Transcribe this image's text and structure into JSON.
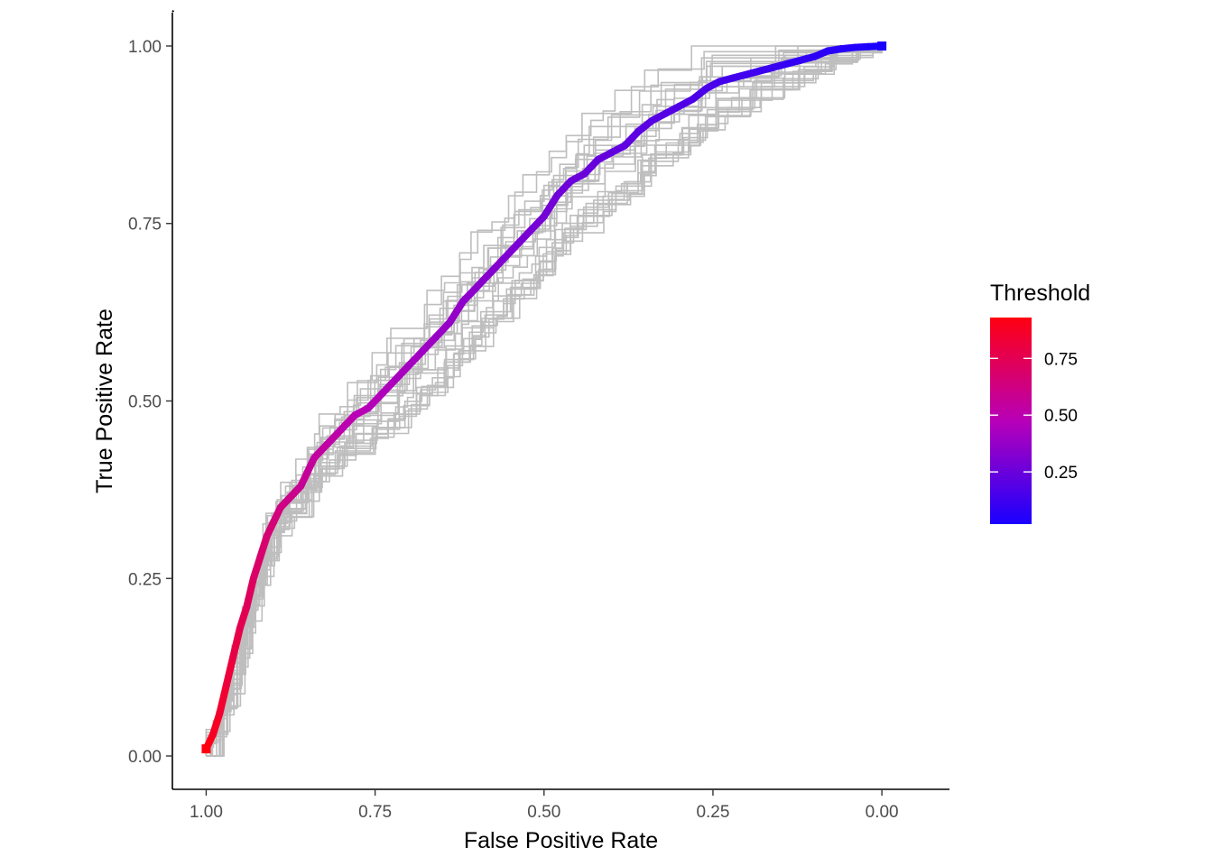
{
  "chart_data": {
    "type": "line",
    "title": "",
    "xlabel": "False Positive Rate",
    "ylabel": "True Positive Rate",
    "x_reversed": true,
    "xlim": [
      1.05,
      -0.1
    ],
    "ylim": [
      -0.047,
      1.047
    ],
    "x_ticks": [
      1.0,
      0.75,
      0.5,
      0.25,
      0.0
    ],
    "x_tick_labels": [
      "1.00",
      "0.75",
      "0.50",
      "0.25",
      "0.00"
    ],
    "y_ticks": [
      0.0,
      0.25,
      0.5,
      0.75,
      1.0
    ],
    "y_tick_labels": [
      "0.00",
      "0.25",
      "0.50",
      "0.75",
      "1.00"
    ],
    "grid": false,
    "diagonal_reference": true,
    "legend": {
      "title": "Threshold",
      "position": "right",
      "ticks": [
        0.75,
        0.5,
        0.25
      ],
      "tick_labels": [
        "0.75",
        "0.50",
        "0.25"
      ],
      "range": [
        0.02,
        0.93
      ],
      "colors": {
        "low": "#1a00ff",
        "mid": "#b800b8",
        "high": "#ff0011"
      }
    },
    "main_curve": {
      "fpr": [
        1.0,
        0.99,
        0.98,
        0.97,
        0.96,
        0.95,
        0.94,
        0.93,
        0.92,
        0.91,
        0.9,
        0.89,
        0.88,
        0.87,
        0.86,
        0.85,
        0.84,
        0.82,
        0.8,
        0.78,
        0.76,
        0.74,
        0.72,
        0.7,
        0.68,
        0.66,
        0.64,
        0.62,
        0.6,
        0.58,
        0.56,
        0.54,
        0.52,
        0.5,
        0.48,
        0.46,
        0.44,
        0.42,
        0.4,
        0.38,
        0.36,
        0.34,
        0.32,
        0.3,
        0.28,
        0.26,
        0.24,
        0.22,
        0.2,
        0.18,
        0.16,
        0.14,
        0.12,
        0.1,
        0.08,
        0.06,
        0.04,
        0.02,
        0.0
      ],
      "tpr": [
        0.01,
        0.03,
        0.06,
        0.1,
        0.14,
        0.18,
        0.21,
        0.25,
        0.28,
        0.31,
        0.33,
        0.35,
        0.36,
        0.37,
        0.38,
        0.4,
        0.42,
        0.44,
        0.46,
        0.48,
        0.49,
        0.51,
        0.53,
        0.55,
        0.57,
        0.59,
        0.61,
        0.64,
        0.66,
        0.68,
        0.7,
        0.72,
        0.74,
        0.76,
        0.79,
        0.81,
        0.82,
        0.84,
        0.85,
        0.86,
        0.88,
        0.895,
        0.905,
        0.915,
        0.925,
        0.94,
        0.95,
        0.955,
        0.96,
        0.965,
        0.97,
        0.975,
        0.98,
        0.985,
        0.993,
        0.996,
        0.998,
        0.999,
        1.0
      ],
      "threshold": [
        0.93,
        0.9,
        0.86,
        0.83,
        0.8,
        0.77,
        0.74,
        0.71,
        0.69,
        0.67,
        0.65,
        0.63,
        0.61,
        0.6,
        0.58,
        0.56,
        0.55,
        0.53,
        0.51,
        0.49,
        0.47,
        0.46,
        0.44,
        0.42,
        0.41,
        0.39,
        0.38,
        0.36,
        0.35,
        0.33,
        0.32,
        0.3,
        0.29,
        0.28,
        0.27,
        0.26,
        0.25,
        0.24,
        0.23,
        0.22,
        0.21,
        0.2,
        0.19,
        0.18,
        0.17,
        0.16,
        0.15,
        0.14,
        0.13,
        0.12,
        0.11,
        0.1,
        0.09,
        0.08,
        0.07,
        0.06,
        0.05,
        0.03,
        0.02
      ]
    },
    "bootstrap_curves": {
      "count": 25,
      "color": "#bebebe",
      "seed": 7
    }
  }
}
